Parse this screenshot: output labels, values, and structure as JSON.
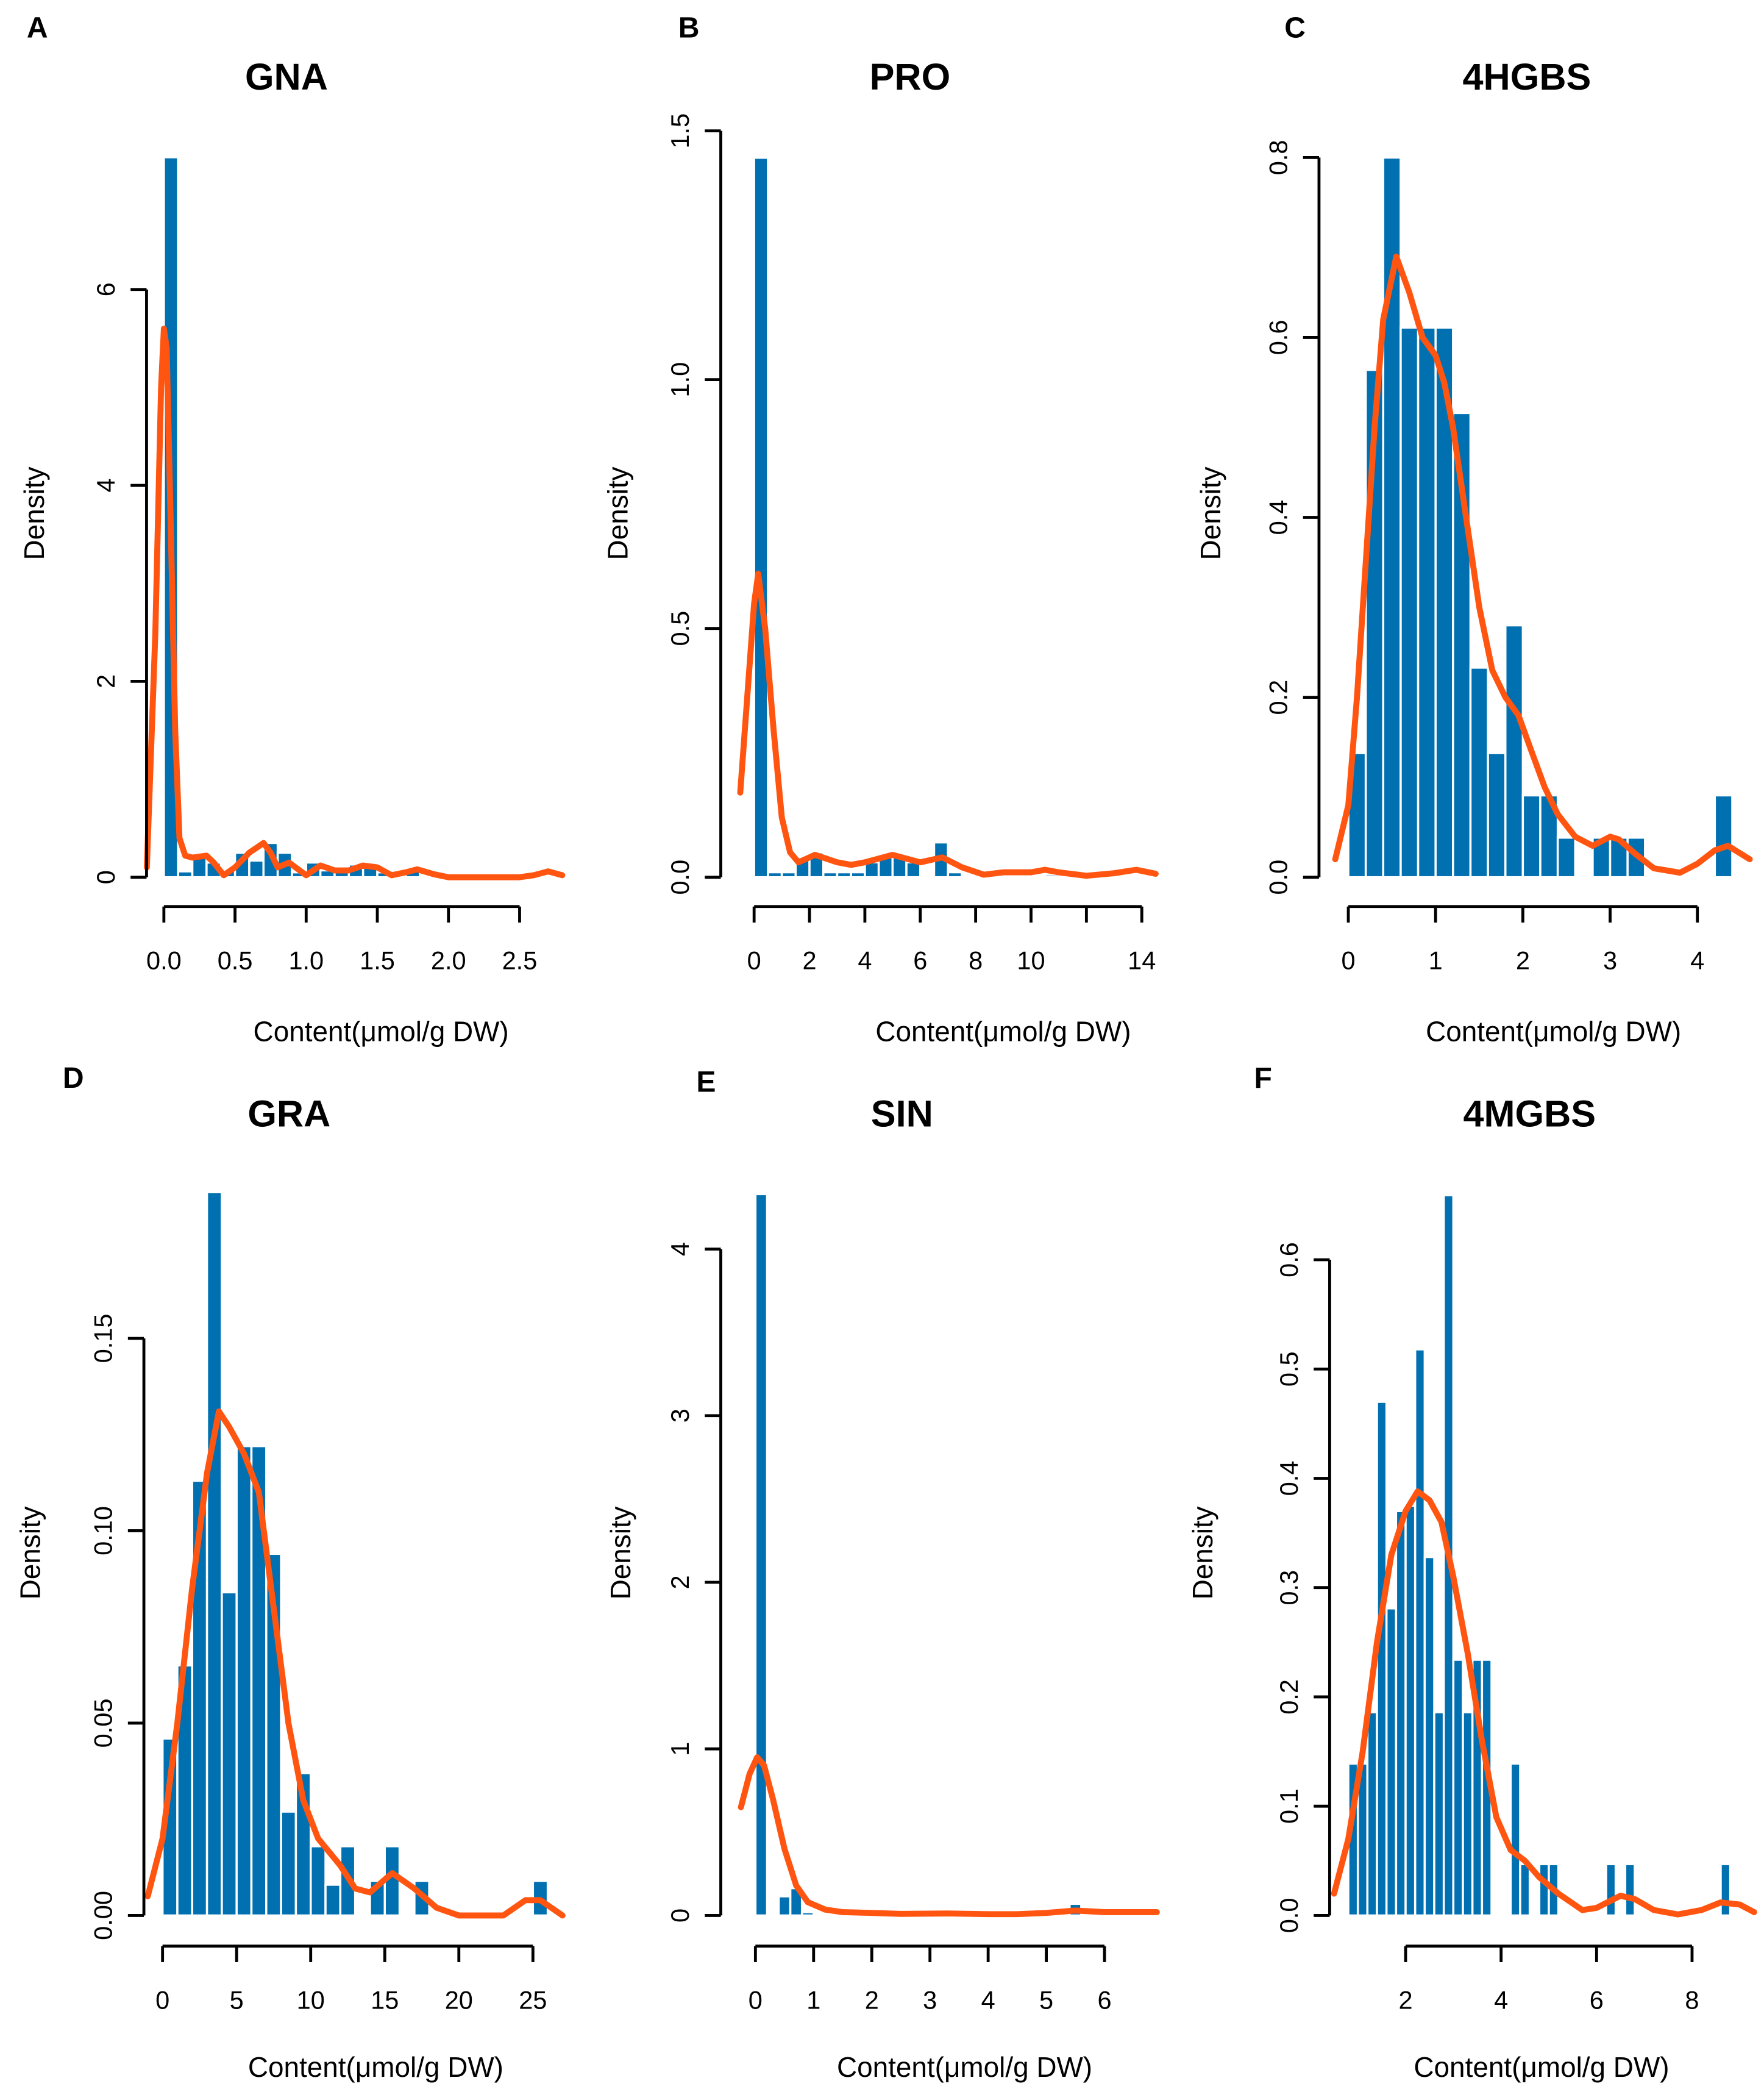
{
  "colors": {
    "bar": "#0070b0",
    "density": "#ff5511",
    "axis": "#000000"
  },
  "chart_data": [
    {
      "panel": "A",
      "type": "bar",
      "title": "GNA",
      "xlabel": "Content(μmol/g DW)",
      "ylabel": "Density",
      "xticks": [
        0.0,
        0.5,
        1.0,
        1.5,
        2.0,
        2.5
      ],
      "xtick_labels": [
        "0.0",
        "0.5",
        "1.0",
        "1.5",
        "2.0",
        "2.5"
      ],
      "yticks": [
        0,
        2,
        4,
        6
      ],
      "ytick_labels": [
        "0",
        "2",
        "4",
        "6"
      ],
      "xlim": [
        -0.13,
        2.8
      ],
      "ylim": [
        0,
        6
      ],
      "bin_width": 0.1,
      "bars": [
        [
          0,
          7.35
        ],
        [
          0.1,
          0.06
        ],
        [
          0.2,
          0.22
        ],
        [
          0.3,
          0.15
        ],
        [
          0.4,
          0.07
        ],
        [
          0.5,
          0.25
        ],
        [
          0.6,
          0.17
        ],
        [
          0.7,
          0.35
        ],
        [
          0.8,
          0.25
        ],
        [
          0.9,
          0.05
        ],
        [
          1.0,
          0.15
        ],
        [
          1.1,
          0.07
        ],
        [
          1.2,
          0.07
        ],
        [
          1.3,
          0.13
        ],
        [
          1.4,
          0.13
        ],
        [
          1.5,
          0.05
        ],
        [
          1.6,
          0.02
        ],
        [
          1.7,
          0.07
        ],
        [
          2.6,
          0.02
        ]
      ],
      "density": [
        [
          -0.12,
          0.1
        ],
        [
          -0.06,
          2.5
        ],
        [
          -0.02,
          5.0
        ],
        [
          0.0,
          5.6
        ],
        [
          0.02,
          5.4
        ],
        [
          0.05,
          3.5
        ],
        [
          0.08,
          1.5
        ],
        [
          0.11,
          0.4
        ],
        [
          0.15,
          0.22
        ],
        [
          0.2,
          0.2
        ],
        [
          0.3,
          0.22
        ],
        [
          0.35,
          0.15
        ],
        [
          0.42,
          0.02
        ],
        [
          0.5,
          0.1
        ],
        [
          0.6,
          0.25
        ],
        [
          0.7,
          0.35
        ],
        [
          0.75,
          0.25
        ],
        [
          0.8,
          0.1
        ],
        [
          0.88,
          0.15
        ],
        [
          1.0,
          0.02
        ],
        [
          1.1,
          0.12
        ],
        [
          1.2,
          0.07
        ],
        [
          1.3,
          0.07
        ],
        [
          1.4,
          0.12
        ],
        [
          1.5,
          0.1
        ],
        [
          1.6,
          0.02
        ],
        [
          1.7,
          0.05
        ],
        [
          1.78,
          0.08
        ],
        [
          1.9,
          0.03
        ],
        [
          2.0,
          0.0
        ],
        [
          2.5,
          0.0
        ],
        [
          2.6,
          0.02
        ],
        [
          2.7,
          0.06
        ],
        [
          2.8,
          0.02
        ]
      ]
    },
    {
      "panel": "B",
      "type": "bar",
      "title": "PRO",
      "xlabel": "Content(μmol/g DW)",
      "ylabel": "Density",
      "xticks": [
        0,
        2,
        4,
        6,
        8,
        10,
        12,
        14
      ],
      "xtick_labels": [
        "0",
        "2",
        "4",
        "6",
        "8",
        "10",
        "",
        "14"
      ],
      "yticks": [
        0.0,
        0.5,
        1.0,
        1.5
      ],
      "ytick_labels": [
        "0.0",
        "0.5",
        "1.0",
        "1.5"
      ],
      "xlim": [
        -0.5,
        14.6
      ],
      "ylim": [
        0,
        1.5
      ],
      "bin_width": 0.5,
      "bars": [
        [
          0,
          1.446
        ],
        [
          0.5,
          0.01
        ],
        [
          1.0,
          0.01
        ],
        [
          1.5,
          0.04
        ],
        [
          2.0,
          0.05
        ],
        [
          2.5,
          0.01
        ],
        [
          3.0,
          0.01
        ],
        [
          3.5,
          0.01
        ],
        [
          4.0,
          0.03
        ],
        [
          4.5,
          0.04
        ],
        [
          5.0,
          0.04
        ],
        [
          5.5,
          0.03
        ],
        [
          6.5,
          0.07
        ],
        [
          7.0,
          0.01
        ],
        [
          10.5,
          0.005
        ]
      ],
      "density": [
        [
          -0.5,
          0.17
        ],
        [
          0,
          0.55
        ],
        [
          0.15,
          0.61
        ],
        [
          0.4,
          0.5
        ],
        [
          0.7,
          0.3
        ],
        [
          1.0,
          0.12
        ],
        [
          1.3,
          0.05
        ],
        [
          1.6,
          0.03
        ],
        [
          2.2,
          0.045
        ],
        [
          3,
          0.03
        ],
        [
          3.5,
          0.025
        ],
        [
          4,
          0.03
        ],
        [
          5,
          0.045
        ],
        [
          6,
          0.03
        ],
        [
          6.8,
          0.04
        ],
        [
          7.5,
          0.02
        ],
        [
          8.3,
          0.005
        ],
        [
          9,
          0.01
        ],
        [
          10,
          0.01
        ],
        [
          10.5,
          0.015
        ],
        [
          11,
          0.01
        ],
        [
          12,
          0.003
        ],
        [
          13,
          0.008
        ],
        [
          13.8,
          0.015
        ],
        [
          14.5,
          0.007
        ]
      ]
    },
    {
      "panel": "C",
      "type": "bar",
      "title": "4HGBS",
      "xlabel": "Content(μmol/g DW)",
      "ylabel": "Density",
      "xticks": [
        0,
        1,
        2,
        3,
        4
      ],
      "xtick_labels": [
        "0",
        "1",
        "2",
        "3",
        "4"
      ],
      "yticks": [
        0.0,
        0.2,
        0.4,
        0.6,
        0.8
      ],
      "ytick_labels": [
        "0.0",
        "0.2",
        "0.4",
        "0.6",
        "0.8"
      ],
      "xlim": [
        -0.15,
        4.6
      ],
      "ylim": [
        0,
        0.8
      ],
      "bin_width": 0.2,
      "bars": [
        [
          0,
          0.138
        ],
        [
          0.2,
          0.564
        ],
        [
          0.4,
          0.8
        ],
        [
          0.6,
          0.611
        ],
        [
          0.8,
          0.611
        ],
        [
          1.0,
          0.611
        ],
        [
          1.2,
          0.516
        ],
        [
          1.4,
          0.233
        ],
        [
          1.6,
          0.138
        ],
        [
          1.8,
          0.28
        ],
        [
          2.0,
          0.091
        ],
        [
          2.2,
          0.091
        ],
        [
          2.4,
          0.044
        ],
        [
          2.8,
          0.044
        ],
        [
          3.0,
          0.044
        ],
        [
          3.2,
          0.044
        ],
        [
          4.2,
          0.091
        ]
      ],
      "density": [
        [
          -0.15,
          0.02
        ],
        [
          0,
          0.08
        ],
        [
          0.1,
          0.2
        ],
        [
          0.2,
          0.35
        ],
        [
          0.3,
          0.5
        ],
        [
          0.4,
          0.62
        ],
        [
          0.55,
          0.69
        ],
        [
          0.7,
          0.65
        ],
        [
          0.85,
          0.6
        ],
        [
          1.0,
          0.58
        ],
        [
          1.1,
          0.55
        ],
        [
          1.2,
          0.5
        ],
        [
          1.35,
          0.4
        ],
        [
          1.5,
          0.3
        ],
        [
          1.65,
          0.23
        ],
        [
          1.8,
          0.2
        ],
        [
          1.95,
          0.18
        ],
        [
          2.1,
          0.14
        ],
        [
          2.25,
          0.1
        ],
        [
          2.4,
          0.07
        ],
        [
          2.6,
          0.045
        ],
        [
          2.8,
          0.035
        ],
        [
          3.0,
          0.045
        ],
        [
          3.1,
          0.042
        ],
        [
          3.3,
          0.025
        ],
        [
          3.5,
          0.01
        ],
        [
          3.8,
          0.005
        ],
        [
          4.0,
          0.015
        ],
        [
          4.2,
          0.03
        ],
        [
          4.35,
          0.035
        ],
        [
          4.6,
          0.02
        ]
      ]
    },
    {
      "panel": "D",
      "type": "bar",
      "title": "GRA",
      "xlabel": "Content(μmol/g DW)",
      "ylabel": "Density",
      "xticks": [
        0,
        5,
        10,
        15,
        20,
        25
      ],
      "xtick_labels": [
        "0",
        "5",
        "10",
        "15",
        "20",
        "25"
      ],
      "yticks": [
        0.0,
        0.05,
        0.1,
        0.15
      ],
      "ytick_labels": [
        "0.00",
        "0.05",
        "0.10",
        "0.15"
      ],
      "xlim": [
        -1,
        27
      ],
      "ylim": [
        0,
        0.15
      ],
      "bin_width": 1,
      "bars": [
        [
          0,
          0.046
        ],
        [
          1,
          0.065
        ],
        [
          2,
          0.113
        ],
        [
          3,
          0.188
        ],
        [
          4,
          0.084
        ],
        [
          5,
          0.122
        ],
        [
          6,
          0.122
        ],
        [
          7,
          0.094
        ],
        [
          8,
          0.027
        ],
        [
          9,
          0.037
        ],
        [
          10,
          0.018
        ],
        [
          11,
          0.008
        ],
        [
          12,
          0.018
        ],
        [
          14,
          0.009
        ],
        [
          15,
          0.018
        ],
        [
          17,
          0.009
        ],
        [
          25,
          0.009
        ]
      ],
      "density": [
        [
          -1,
          0.005
        ],
        [
          0,
          0.02
        ],
        [
          1,
          0.05
        ],
        [
          2,
          0.085
        ],
        [
          3,
          0.115
        ],
        [
          3.8,
          0.131
        ],
        [
          4.5,
          0.127
        ],
        [
          5.5,
          0.12
        ],
        [
          6.5,
          0.11
        ],
        [
          7.5,
          0.08
        ],
        [
          8.5,
          0.05
        ],
        [
          9.5,
          0.03
        ],
        [
          10.5,
          0.02
        ],
        [
          12,
          0.013
        ],
        [
          13,
          0.007
        ],
        [
          14,
          0.006
        ],
        [
          15.5,
          0.011
        ],
        [
          17,
          0.007
        ],
        [
          18.5,
          0.002
        ],
        [
          20,
          0.0
        ],
        [
          23,
          0.0
        ],
        [
          24.5,
          0.004
        ],
        [
          25.5,
          0.004
        ],
        [
          27,
          0.0
        ]
      ]
    },
    {
      "panel": "E",
      "type": "bar",
      "title": "SIN",
      "xlabel": "Content(μmol/g DW)",
      "ylabel": "Density",
      "xticks": [
        0,
        1,
        2,
        3,
        4,
        5,
        6
      ],
      "xtick_labels": [
        "0",
        "1",
        "2",
        "3",
        "4",
        "5",
        "6"
      ],
      "yticks": [
        0,
        1,
        2,
        3,
        4
      ],
      "ytick_labels": [
        "0",
        "1",
        "2",
        "3",
        "4"
      ],
      "xlim": [
        -0.25,
        6.9
      ],
      "ylim": [
        0,
        4
      ],
      "bin_width": 0.2,
      "bars": [
        [
          0,
          4.33
        ],
        [
          0.4,
          0.115
        ],
        [
          0.6,
          0.164
        ],
        [
          0.8,
          0.02
        ],
        [
          1.2,
          0.01
        ],
        [
          5.4,
          0.07
        ]
      ],
      "density": [
        [
          -0.25,
          0.65
        ],
        [
          -0.1,
          0.85
        ],
        [
          0.03,
          0.95
        ],
        [
          0.15,
          0.9
        ],
        [
          0.3,
          0.7
        ],
        [
          0.5,
          0.4
        ],
        [
          0.7,
          0.18
        ],
        [
          0.9,
          0.08
        ],
        [
          1.2,
          0.035
        ],
        [
          1.5,
          0.02
        ],
        [
          2,
          0.015
        ],
        [
          2.5,
          0.01
        ],
        [
          3.3,
          0.012
        ],
        [
          4,
          0.008
        ],
        [
          4.5,
          0.008
        ],
        [
          5,
          0.015
        ],
        [
          5.5,
          0.03
        ],
        [
          6,
          0.02
        ],
        [
          6.9,
          0.02
        ]
      ]
    },
    {
      "panel": "F",
      "type": "bar",
      "title": "4MGBS",
      "xlabel": "Content(μmol/g DW)",
      "ylabel": "Density",
      "xticks": [
        2,
        4,
        6,
        8
      ],
      "xtick_labels": [
        "2",
        "4",
        "6",
        "8"
      ],
      "yticks": [
        0.0,
        0.1,
        0.2,
        0.3,
        0.4,
        0.5,
        0.6
      ],
      "ytick_labels": [
        "0.0",
        "0.1",
        "0.2",
        "0.3",
        "0.4",
        "0.5",
        "0.6"
      ],
      "xlim": [
        0.5,
        9.3
      ],
      "ylim": [
        0,
        0.6
      ],
      "bin_width": 0.2,
      "bars": [
        [
          0.8,
          0.139
        ],
        [
          1.0,
          0.139
        ],
        [
          1.2,
          0.186
        ],
        [
          1.4,
          0.47
        ],
        [
          1.6,
          0.281
        ],
        [
          1.8,
          0.37
        ],
        [
          2.0,
          0.375
        ],
        [
          2.2,
          0.518
        ],
        [
          2.4,
          0.328
        ],
        [
          2.6,
          0.186
        ],
        [
          2.8,
          0.659
        ],
        [
          3.0,
          0.234
        ],
        [
          3.2,
          0.186
        ],
        [
          3.4,
          0.234
        ],
        [
          3.6,
          0.234
        ],
        [
          4.2,
          0.139
        ],
        [
          4.4,
          0.047
        ],
        [
          4.8,
          0.047
        ],
        [
          5.0,
          0.047
        ],
        [
          6.2,
          0.047
        ],
        [
          6.6,
          0.047
        ],
        [
          8.6,
          0.047
        ]
      ],
      "density": [
        [
          0.5,
          0.02
        ],
        [
          0.8,
          0.07
        ],
        [
          1.1,
          0.15
        ],
        [
          1.4,
          0.25
        ],
        [
          1.7,
          0.33
        ],
        [
          2.0,
          0.37
        ],
        [
          2.25,
          0.388
        ],
        [
          2.5,
          0.38
        ],
        [
          2.75,
          0.36
        ],
        [
          3.0,
          0.31
        ],
        [
          3.3,
          0.24
        ],
        [
          3.6,
          0.16
        ],
        [
          3.9,
          0.09
        ],
        [
          4.2,
          0.06
        ],
        [
          4.5,
          0.05
        ],
        [
          4.8,
          0.035
        ],
        [
          5.2,
          0.02
        ],
        [
          5.7,
          0.005
        ],
        [
          6.0,
          0.007
        ],
        [
          6.5,
          0.018
        ],
        [
          6.8,
          0.015
        ],
        [
          7.2,
          0.005
        ],
        [
          7.7,
          0.001
        ],
        [
          8.2,
          0.005
        ],
        [
          8.6,
          0.012
        ],
        [
          9.0,
          0.01
        ],
        [
          9.3,
          0.003
        ]
      ]
    }
  ]
}
